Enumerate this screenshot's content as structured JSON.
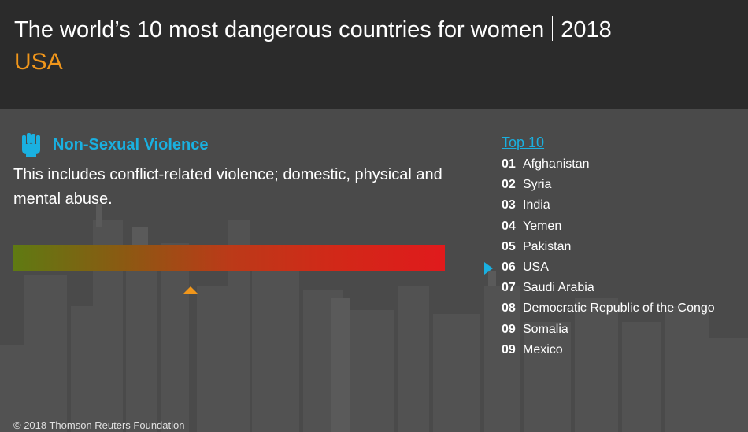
{
  "header": {
    "title": "The world’s 10 most dangerous countries for women",
    "year": "2018",
    "country": "USA"
  },
  "category": {
    "icon": "raised-fist-icon",
    "title": "Non-Sexual Violence",
    "description": "This includes conflict-related violence; domestic, physical and mental abuse."
  },
  "chart_data": {
    "type": "bar",
    "title": "Non-Sexual Violence",
    "description": "Position of USA on a low-to-high danger gradient scale",
    "series": [
      {
        "name": "USA",
        "values": [
          0.41
        ]
      }
    ],
    "ylim": [
      0,
      1
    ],
    "colors": {
      "low": "#5f7a12",
      "high": "#e01a1c",
      "marker": "#f0961b"
    }
  },
  "top10": {
    "heading": "Top 10",
    "highlighted": "06",
    "items": [
      {
        "rank": "01",
        "country": "Afghanistan"
      },
      {
        "rank": "02",
        "country": "Syria"
      },
      {
        "rank": "03",
        "country": "India"
      },
      {
        "rank": "04",
        "country": "Yemen"
      },
      {
        "rank": "05",
        "country": "Pakistan"
      },
      {
        "rank": "06",
        "country": "USA"
      },
      {
        "rank": "07",
        "country": "Saudi Arabia"
      },
      {
        "rank": "08",
        "country": "Democratic Republic of the Congo"
      },
      {
        "rank": "09",
        "country": "Somalia"
      },
      {
        "rank": "09",
        "country": "Mexico"
      }
    ]
  },
  "footer": {
    "copyright": "© 2018 Thomson Reuters Foundation"
  },
  "colors": {
    "accent_orange": "#f0961b",
    "accent_blue": "#1ab0e0",
    "header_bg": "#2b2b2b",
    "body_bg": "#4a4a4a"
  }
}
